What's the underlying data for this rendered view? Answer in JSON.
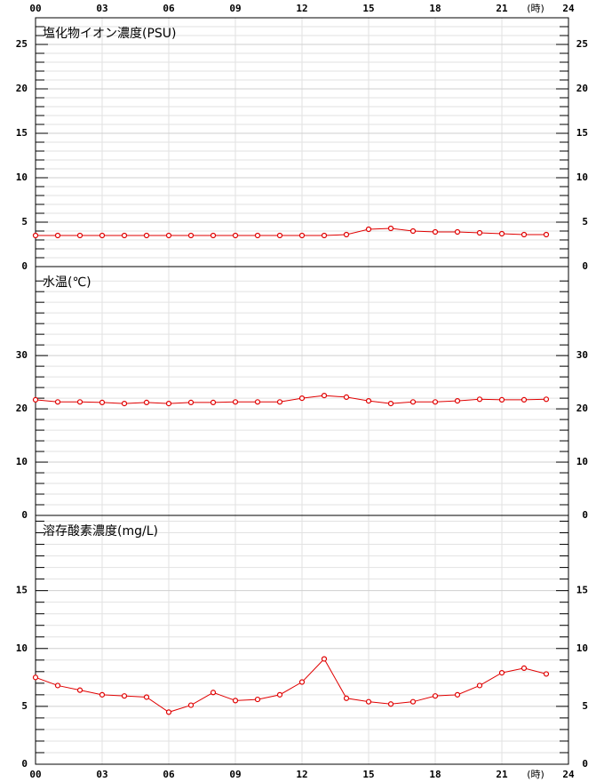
{
  "chart_data": [
    {
      "type": "line",
      "title": "塩化物イオン濃度(PSU)",
      "xlabel": "(時)",
      "x": [
        0,
        1,
        2,
        3,
        4,
        5,
        6,
        7,
        8,
        9,
        10,
        11,
        12,
        13,
        14,
        15,
        16,
        17,
        18,
        19,
        20,
        21,
        22,
        23
      ],
      "values": [
        3.5,
        3.5,
        3.5,
        3.5,
        3.5,
        3.5,
        3.5,
        3.5,
        3.5,
        3.5,
        3.5,
        3.5,
        3.5,
        3.5,
        3.6,
        4.2,
        4.3,
        4.0,
        3.9,
        3.9,
        3.8,
        3.7,
        3.6,
        3.6
      ],
      "color": "#e00000",
      "xlim": [
        0,
        24
      ],
      "xticks": [
        {
          "value": 0,
          "label": "00"
        },
        {
          "value": 3,
          "label": "03"
        },
        {
          "value": 6,
          "label": "06"
        },
        {
          "value": 9,
          "label": "09"
        },
        {
          "value": 12,
          "label": "12"
        },
        {
          "value": 15,
          "label": "15"
        },
        {
          "value": 18,
          "label": "18"
        },
        {
          "value": 21,
          "label": "21"
        },
        {
          "value": 24,
          "label": "24"
        }
      ],
      "ylim": [
        0,
        28
      ],
      "yticks": [
        0,
        5,
        10,
        15,
        20,
        25
      ],
      "minor_yticks": [
        1,
        2,
        3,
        4,
        6,
        7,
        8,
        9,
        11,
        12,
        13,
        14,
        16,
        17,
        18,
        19,
        21,
        22,
        23,
        24,
        26,
        27
      ],
      "grid": true
    },
    {
      "type": "line",
      "title": "水温(℃)",
      "x": [
        0,
        1,
        2,
        3,
        4,
        5,
        6,
        7,
        8,
        9,
        10,
        11,
        12,
        13,
        14,
        15,
        16,
        17,
        18,
        19,
        20,
        21,
        22,
        23
      ],
      "values": [
        21.7,
        21.3,
        21.3,
        21.2,
        21.0,
        21.2,
        21.0,
        21.2,
        21.2,
        21.3,
        21.3,
        21.3,
        22.0,
        22.5,
        22.2,
        21.5,
        21.0,
        21.3,
        21.3,
        21.5,
        21.8,
        21.7,
        21.7,
        21.8
      ],
      "color": "#e00000",
      "xlim": [
        0,
        24
      ],
      "xticks": [
        0,
        3,
        6,
        9,
        12,
        15,
        18,
        21,
        24
      ],
      "ylim": [
        0,
        46.7
      ],
      "yticks": [
        0,
        10,
        20,
        30
      ],
      "minor_yticks": [
        2,
        4,
        6,
        8,
        12,
        14,
        16,
        18,
        22,
        24,
        26,
        28,
        32,
        34,
        36,
        38,
        40,
        42,
        44
      ],
      "grid": true
    },
    {
      "type": "line",
      "title": "溶存酸素濃度(mg/L)",
      "xlabel": "(時)",
      "x": [
        0,
        1,
        2,
        3,
        4,
        5,
        6,
        7,
        8,
        9,
        10,
        11,
        12,
        13,
        14,
        15,
        16,
        17,
        18,
        19,
        20,
        21,
        22,
        23
      ],
      "values": [
        7.5,
        6.8,
        6.4,
        6.0,
        5.9,
        5.8,
        4.5,
        5.1,
        6.2,
        5.5,
        5.6,
        6.0,
        7.1,
        9.1,
        5.7,
        5.4,
        5.2,
        5.4,
        5.9,
        6.0,
        6.8,
        7.9,
        8.3,
        7.8
      ],
      "color": "#e00000",
      "xlim": [
        0,
        24
      ],
      "xticks": [
        {
          "value": 0,
          "label": "00"
        },
        {
          "value": 3,
          "label": "03"
        },
        {
          "value": 6,
          "label": "06"
        },
        {
          "value": 9,
          "label": "09"
        },
        {
          "value": 12,
          "label": "12"
        },
        {
          "value": 15,
          "label": "15"
        },
        {
          "value": 18,
          "label": "18"
        },
        {
          "value": 21,
          "label": "21"
        },
        {
          "value": 24,
          "label": "24"
        }
      ],
      "ylim": [
        0,
        21.5
      ],
      "yticks": [
        0,
        5,
        10,
        15
      ],
      "minor_yticks": [
        1,
        2,
        3,
        4,
        6,
        7,
        8,
        9,
        11,
        12,
        13,
        14,
        16,
        17,
        18,
        19,
        20,
        21
      ],
      "grid": true
    }
  ]
}
